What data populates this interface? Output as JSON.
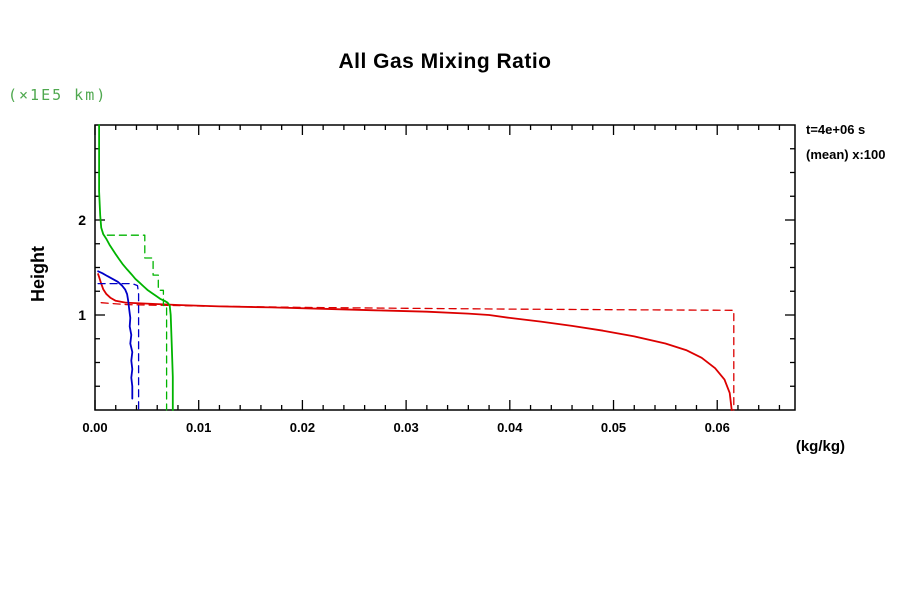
{
  "labels": {
    "title": "All Gas Mixing Ratio",
    "y_unit": "(×1E5 km)",
    "y_title": "Height",
    "annotation_line1": "t=4e+06 s",
    "annotation_line2": "(mean) x:100",
    "x_unit": "(kg/kg)"
  },
  "colors": {
    "axis": "#000000",
    "y_unit_text": "#4fa84f",
    "red": "#dc0000",
    "green": "#00b400",
    "blue": "#0000c8"
  },
  "chart_data": {
    "type": "line",
    "title": "All Gas Mixing Ratio",
    "xlabel": "(kg/kg)",
    "ylabel": "Height",
    "y_axis_unit": "(×1E5 km)",
    "annotations": [
      "t=4e+06 s",
      "(mean) x:100"
    ],
    "xlim": [
      0,
      0.0675
    ],
    "ylim": [
      0,
      3.0
    ],
    "x_ticks": {
      "values": [
        0,
        0.01,
        0.02,
        0.03,
        0.04,
        0.05,
        0.06
      ],
      "labels": [
        "0.00",
        "0.01",
        "0.02",
        "0.03",
        "0.04",
        "0.05",
        "0.06"
      ]
    },
    "y_ticks": {
      "values": [
        1,
        2
      ],
      "labels": [
        "1",
        "2"
      ]
    },
    "x_minor_step": 0.002,
    "y_minor_step": 0.25,
    "grid": false,
    "legend": "none",
    "series": [
      {
        "name": "red-solid",
        "color": "#dc0000",
        "line_style": "solid",
        "points": [
          [
            0.0003,
            1.43
          ],
          [
            0.0004,
            1.4
          ],
          [
            0.0006,
            1.33
          ],
          [
            0.0008,
            1.27
          ],
          [
            0.0011,
            1.22
          ],
          [
            0.0015,
            1.18
          ],
          [
            0.002,
            1.15
          ],
          [
            0.003,
            1.13
          ],
          [
            0.005,
            1.12
          ],
          [
            0.008,
            1.105
          ],
          [
            0.012,
            1.09
          ],
          [
            0.017,
            1.08
          ],
          [
            0.022,
            1.065
          ],
          [
            0.027,
            1.05
          ],
          [
            0.032,
            1.035
          ],
          [
            0.036,
            1.015
          ],
          [
            0.038,
            1.0
          ],
          [
            0.04,
            0.97
          ],
          [
            0.043,
            0.93
          ],
          [
            0.046,
            0.885
          ],
          [
            0.049,
            0.835
          ],
          [
            0.052,
            0.775
          ],
          [
            0.055,
            0.7
          ],
          [
            0.057,
            0.63
          ],
          [
            0.0585,
            0.55
          ],
          [
            0.0598,
            0.44
          ],
          [
            0.0607,
            0.32
          ],
          [
            0.0612,
            0.18
          ],
          [
            0.0614,
            0.0
          ]
        ]
      },
      {
        "name": "red-dashed",
        "color": "#dc0000",
        "line_style": "dashed",
        "points": [
          [
            0.0006,
            1.13
          ],
          [
            0.003,
            1.11
          ],
          [
            0.01,
            1.095
          ],
          [
            0.02,
            1.08
          ],
          [
            0.03,
            1.07
          ],
          [
            0.04,
            1.062
          ],
          [
            0.05,
            1.056
          ],
          [
            0.0616,
            1.05
          ],
          [
            0.0616,
            0.0
          ]
        ]
      },
      {
        "name": "green-solid",
        "color": "#00b400",
        "line_style": "solid",
        "points": [
          [
            0.0004,
            3.0
          ],
          [
            0.0004,
            2.3
          ],
          [
            0.0005,
            2.05
          ],
          [
            0.0006,
            1.92
          ],
          [
            0.0008,
            1.85
          ],
          [
            0.0011,
            1.8
          ],
          [
            0.0014,
            1.74
          ],
          [
            0.0017,
            1.69
          ],
          [
            0.002,
            1.64
          ],
          [
            0.0023,
            1.59
          ],
          [
            0.0027,
            1.53
          ],
          [
            0.0031,
            1.48
          ],
          [
            0.0035,
            1.43
          ],
          [
            0.0039,
            1.38
          ],
          [
            0.0043,
            1.34
          ],
          [
            0.0047,
            1.3
          ],
          [
            0.0051,
            1.26
          ],
          [
            0.0055,
            1.23
          ],
          [
            0.0059,
            1.2
          ],
          [
            0.0063,
            1.17
          ],
          [
            0.0067,
            1.15
          ],
          [
            0.007,
            1.13
          ],
          [
            0.0072,
            1.1
          ],
          [
            0.0073,
            1.0
          ],
          [
            0.0074,
            0.7
          ],
          [
            0.0075,
            0.35
          ],
          [
            0.0075,
            0.0
          ]
        ]
      },
      {
        "name": "green-dashed",
        "color": "#00b400",
        "line_style": "dashed",
        "points": [
          [
            0.0012,
            1.84
          ],
          [
            0.0048,
            1.84
          ],
          [
            0.0048,
            1.6
          ],
          [
            0.0056,
            1.6
          ],
          [
            0.0056,
            1.42
          ],
          [
            0.0061,
            1.42
          ],
          [
            0.0061,
            1.26
          ],
          [
            0.0066,
            1.26
          ],
          [
            0.0066,
            1.1
          ],
          [
            0.0069,
            1.1
          ],
          [
            0.0069,
            0.0
          ]
        ]
      },
      {
        "name": "blue-solid",
        "color": "#0000c8",
        "line_style": "solid",
        "points": [
          [
            0.0003,
            1.46
          ],
          [
            0.0007,
            1.44
          ],
          [
            0.0012,
            1.41
          ],
          [
            0.0017,
            1.38
          ],
          [
            0.0022,
            1.35
          ],
          [
            0.0026,
            1.31
          ],
          [
            0.0029,
            1.27
          ],
          [
            0.0031,
            1.22
          ],
          [
            0.0032,
            1.15
          ],
          [
            0.0033,
            1.06
          ],
          [
            0.0034,
            0.97
          ],
          [
            0.00335,
            0.88
          ],
          [
            0.0035,
            0.79
          ],
          [
            0.0034,
            0.7
          ],
          [
            0.0036,
            0.61
          ],
          [
            0.0035,
            0.52
          ],
          [
            0.0036,
            0.43
          ],
          [
            0.0035,
            0.34
          ],
          [
            0.0036,
            0.25
          ],
          [
            0.0036,
            0.12
          ]
        ]
      },
      {
        "name": "blue-dashed",
        "color": "#0000c8",
        "line_style": "dashed",
        "points": [
          [
            0.0003,
            1.33
          ],
          [
            0.0036,
            1.33
          ],
          [
            0.0041,
            1.31
          ],
          [
            0.0042,
            1.22
          ],
          [
            0.0042,
            0.0
          ]
        ]
      }
    ]
  }
}
